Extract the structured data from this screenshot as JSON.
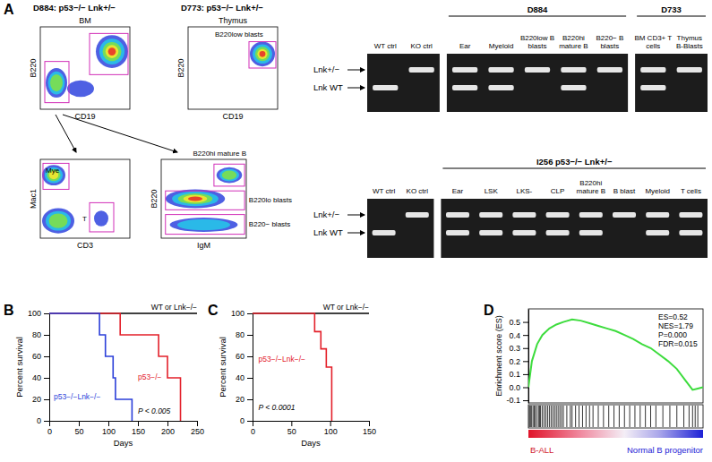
{
  "figure": {
    "panel_labels": [
      "A",
      "B",
      "C",
      "D"
    ]
  },
  "flow": {
    "plots": [
      {
        "sample": "D884: p53−/− Lnk+/−",
        "tissue": "BM",
        "x_label": "CD19",
        "y_label": "B220"
      },
      {
        "sample": "D773: p53−/− Lnk+/−",
        "tissue": "Thymus",
        "x_label": "CD19",
        "y_label": "B220",
        "gate_labels": [
          "B220low blasts"
        ]
      },
      {
        "x_label": "CD3",
        "y_label": "Mac1",
        "gate_labels": [
          "Mye",
          "T"
        ]
      },
      {
        "x_label": "IgM",
        "y_label": "B220",
        "gate_labels": [
          "B220hi mature B",
          "B220lo blasts",
          "B220− blasts"
        ]
      }
    ]
  },
  "gels": [
    {
      "band_labels": [
        "Lnk+/−",
        "Lnk WT"
      ],
      "groups": [
        {
          "label": "D884",
          "first": 2,
          "last": 6
        },
        {
          "label": "D733",
          "first": 7,
          "last": 8
        }
      ],
      "lanes": [
        {
          "label": "WT ctrl",
          "upper": false,
          "lower": true
        },
        {
          "label": "KO ctrl",
          "upper": true,
          "lower": false
        },
        {
          "label": "Ear",
          "upper": true,
          "lower": true
        },
        {
          "label": "Myeloid",
          "upper": true,
          "lower": true
        },
        {
          "label": "B220low B blasts",
          "upper": true,
          "lower": false
        },
        {
          "label": "B220hi mature B",
          "upper": true,
          "lower": true
        },
        {
          "label": "B220− B blasts",
          "upper": true,
          "lower": false
        },
        {
          "label": "BM CD3+ T cells",
          "upper": true,
          "lower": true
        },
        {
          "label": "Thymus B-Blasts",
          "upper": true,
          "lower": false
        }
      ]
    },
    {
      "band_labels": [
        "Lnk+/−",
        "Lnk WT"
      ],
      "groups": [
        {
          "label": "I256 p53−/− Lnk+/−",
          "first": 2,
          "last": 9
        }
      ],
      "lanes": [
        {
          "label": "WT ctrl",
          "upper": false,
          "lower": true
        },
        {
          "label": "KO ctrl",
          "upper": true,
          "lower": false
        },
        {
          "label": "Ear",
          "upper": true,
          "lower": true
        },
        {
          "label": "LSK",
          "upper": true,
          "lower": true
        },
        {
          "label": "LKS-",
          "upper": true,
          "lower": true
        },
        {
          "label": "CLP",
          "upper": true,
          "lower": true
        },
        {
          "label": "B220hi mature B",
          "upper": true,
          "lower": true
        },
        {
          "label": "B blast",
          "upper": true,
          "lower": false
        },
        {
          "label": "Myeloid",
          "upper": true,
          "lower": true
        },
        {
          "label": "T cells",
          "upper": true,
          "lower": true
        }
      ]
    }
  ],
  "chart_data": [
    {
      "type": "line",
      "line_style": "step",
      "xlabel": "Days",
      "ylabel": "Percent survival",
      "xlim": [
        0,
        250
      ],
      "xticks": [
        0,
        50,
        100,
        150,
        200,
        250
      ],
      "ylim": [
        0,
        100
      ],
      "yticks": [
        0,
        20,
        40,
        60,
        80,
        100
      ],
      "annotations": [
        "P < 0.005"
      ],
      "series": [
        {
          "name": "WT or Lnk−/−",
          "color": "#000000",
          "x": [
            0,
            250
          ],
          "values": [
            100,
            100
          ]
        },
        {
          "name": "p53−/−",
          "color": "#e3202a",
          "x": [
            0,
            120,
            185,
            200,
            222
          ],
          "values": [
            100,
            80,
            60,
            40,
            0
          ]
        },
        {
          "name": "p53−/−Lnk−/−",
          "color": "#2b3fd9",
          "x": [
            0,
            85,
            95,
            108,
            112,
            140
          ],
          "values": [
            100,
            80,
            60,
            40,
            20,
            0
          ]
        }
      ]
    },
    {
      "type": "line",
      "line_style": "step",
      "xlabel": "Days",
      "ylabel": "Percent survival",
      "xlim": [
        0,
        150
      ],
      "xticks": [
        0,
        50,
        100,
        150
      ],
      "ylim": [
        0,
        100
      ],
      "yticks": [
        0,
        20,
        40,
        60,
        80,
        100
      ],
      "annotations": [
        "P < 0.0001"
      ],
      "series": [
        {
          "name": "WT or Lnk−/−",
          "color": "#000000",
          "x": [
            0,
            150
          ],
          "values": [
            100,
            100
          ]
        },
        {
          "name": "p53−/−Lnk−/−",
          "color": "#e3202a",
          "x": [
            0,
            80,
            88,
            95,
            102
          ],
          "values": [
            100,
            83,
            67,
            50,
            0
          ]
        }
      ]
    },
    {
      "type": "line",
      "ylabel": "Enrichment score (ES)",
      "tick_labels": "y",
      "xlim": [
        0,
        100
      ],
      "ylim": [
        -0.12,
        0.6
      ],
      "yticks": [
        -0.1,
        {
          "value": 0,
          "label": "0.0"
        },
        0.1,
        0.2,
        0.3,
        0.4,
        0.5
      ],
      "annotations": [
        "ES=0.52",
        "NES=1.79",
        "P=0.000",
        "FDR=0.015"
      ],
      "phenotype_labels": [
        "B-ALL",
        "Normal B progenitor"
      ],
      "series": [
        {
          "color": "#3ddc3d",
          "x": [
            0,
            2,
            5,
            8,
            12,
            16,
            20,
            25,
            30,
            35,
            40,
            45,
            50,
            55,
            60,
            65,
            70,
            75,
            80,
            85,
            90,
            94,
            97,
            100
          ],
          "values": [
            0,
            0.2,
            0.33,
            0.4,
            0.45,
            0.48,
            0.5,
            0.52,
            0.51,
            0.49,
            0.47,
            0.45,
            0.43,
            0.4,
            0.37,
            0.33,
            0.3,
            0.25,
            0.2,
            0.14,
            0.05,
            -0.02,
            -0.01,
            0
          ]
        }
      ],
      "hits": [
        0.5,
        1,
        1.5,
        2,
        3,
        3.5,
        4,
        5,
        6,
        6.5,
        7,
        8,
        9,
        10,
        11,
        12,
        13,
        14,
        15,
        16,
        17,
        18,
        19,
        20,
        22,
        24,
        25,
        27,
        29,
        31,
        33,
        35,
        37,
        40,
        43,
        46,
        49,
        52,
        55,
        58,
        61,
        64,
        67,
        70,
        73,
        77,
        81,
        85,
        89,
        92,
        94,
        95.5,
        97
      ]
    }
  ]
}
